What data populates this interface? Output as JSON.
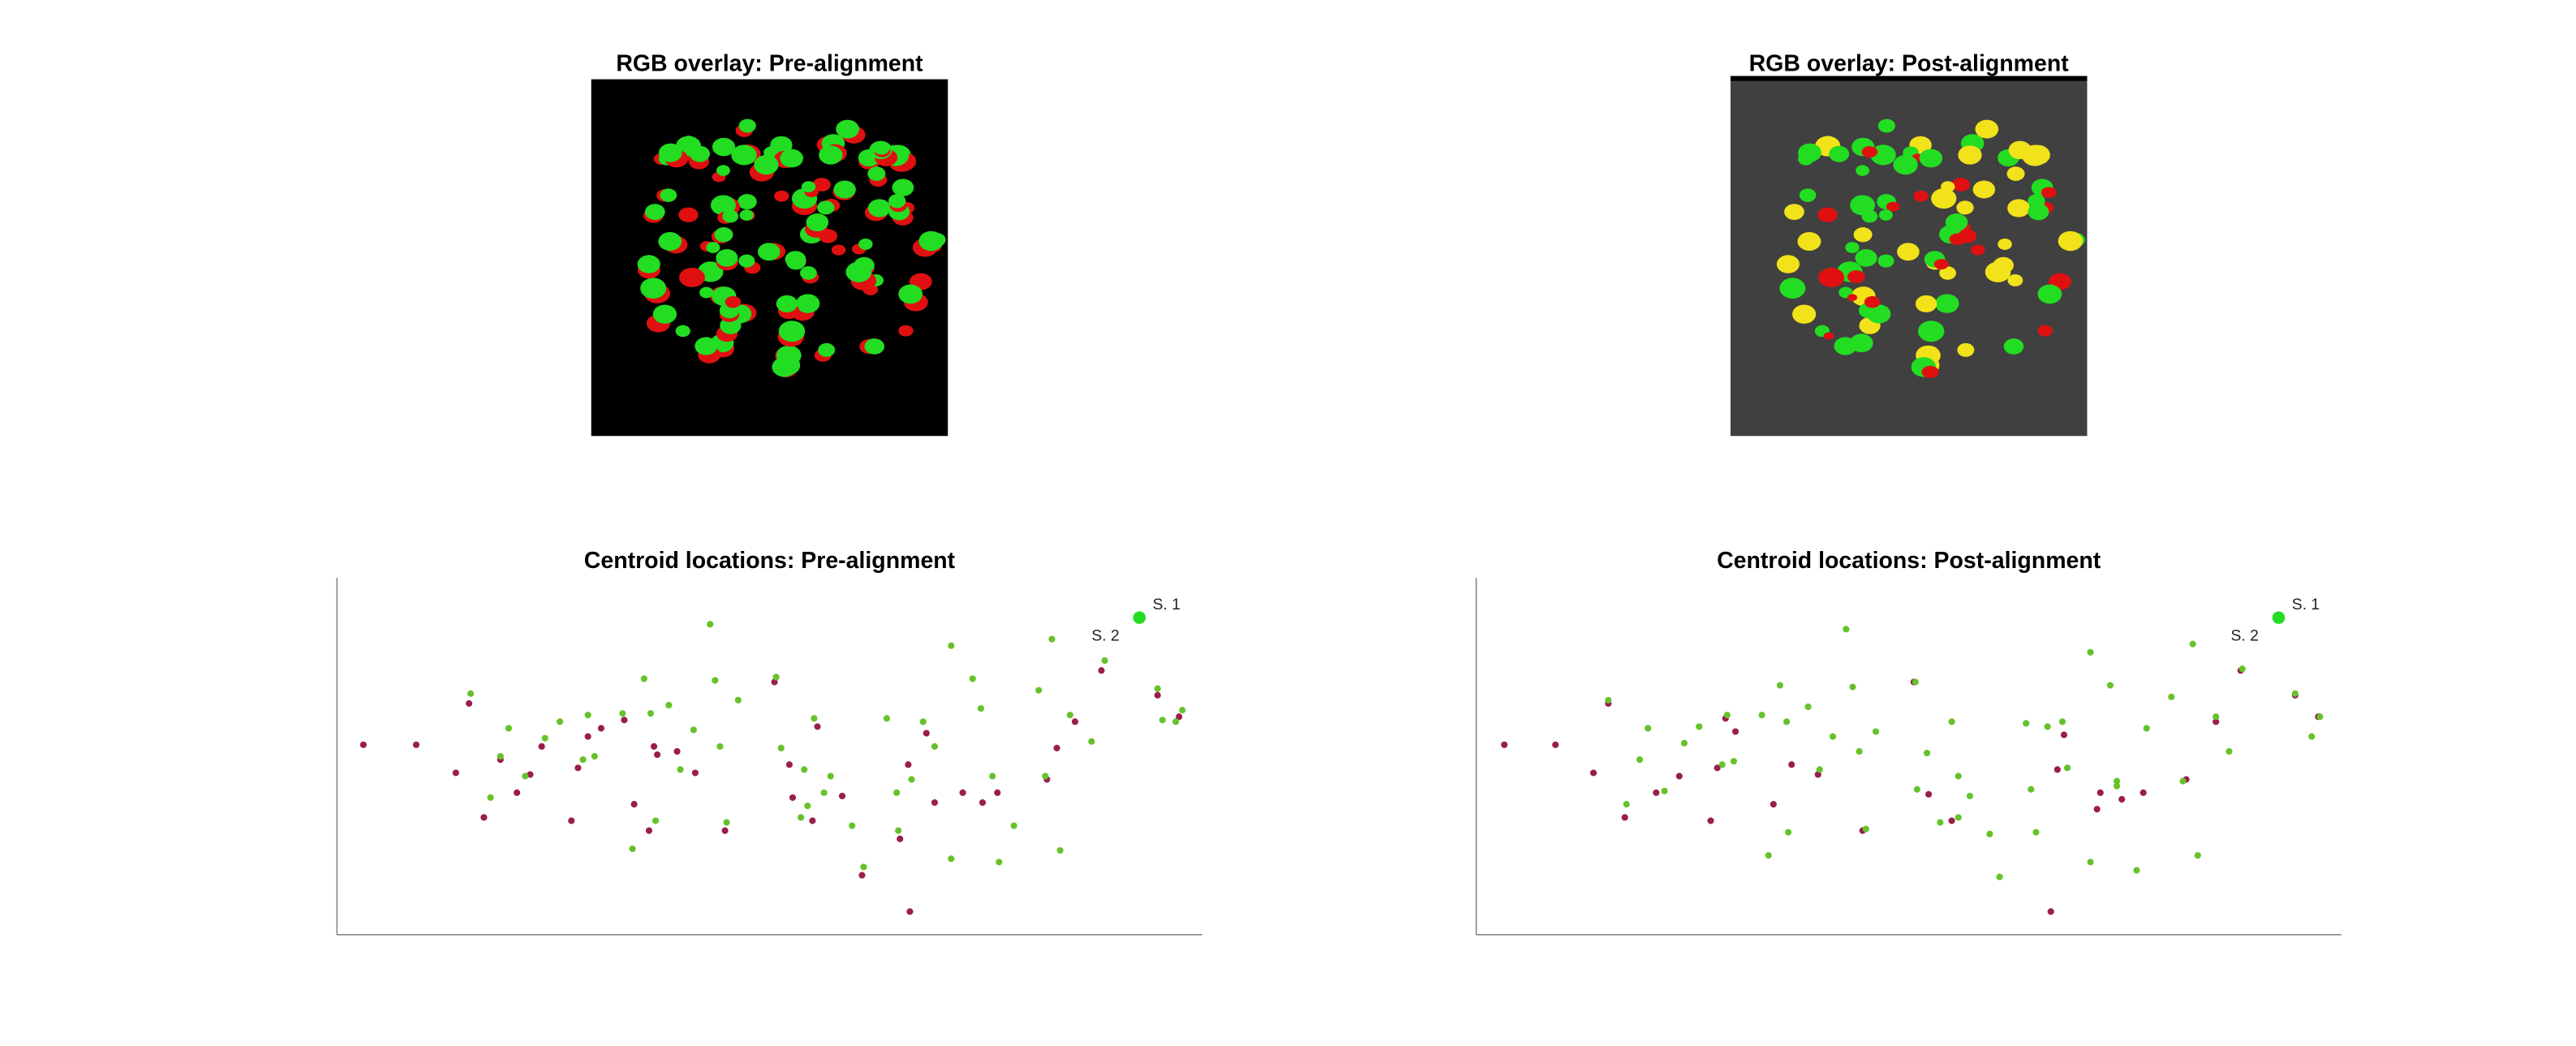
{
  "images": [
    {
      "title": "RGB overlay: Pre-alignment",
      "background": "#000000",
      "mode": "pre"
    },
    {
      "title": "RGB overlay: Post-alignment",
      "background": "#404040",
      "mode": "post"
    }
  ],
  "chart_data": [
    {
      "type": "scatter",
      "title": "Centroid locations: Pre-alignment",
      "xlim": [
        204,
        728
      ],
      "ylim": [
        566,
        350
      ],
      "series": [
        {
          "color": "#9a1e4c",
          "x": [
            220,
            252,
            276,
            284,
            293,
            303,
            313,
            321,
            328,
            346,
            350,
            356,
            364,
            378,
            384,
            393,
            398,
            410,
            421,
            439,
            469,
            478,
            480,
            492,
            495,
            510,
            522,
            545,
            551,
            561,
            566,
            583,
            595,
            604,
            634,
            640,
            651,
            667,
            701,
            714,
            396,
            550
          ],
          "values": [
            451,
            451,
            468,
            426,
            495,
            460,
            480,
            469,
            452,
            497,
            465,
            446,
            441,
            436,
            487,
            503,
            457,
            455,
            468,
            503,
            413,
            463,
            483,
            497,
            440,
            482,
            530,
            508,
            552,
            444,
            486,
            480,
            486,
            480,
            472,
            453,
            437,
            406,
            421,
            434,
            452,
            463
          ]
        },
        {
          "color": "#66c22a",
          "x": [
            285,
            308,
            303,
            330,
            339,
            356,
            360,
            377,
            390,
            394,
            405,
            412,
            420,
            433,
            436,
            447,
            470,
            473,
            487,
            493,
            499,
            503,
            516,
            537,
            543,
            552,
            559,
            566,
            576,
            589,
            594,
            601,
            614,
            629,
            637,
            648,
            661,
            669,
            701,
            712,
            704,
            716,
            430,
            383,
            523,
            576,
            605,
            642,
            297,
            318,
            353,
            397,
            440,
            485,
            489,
            544,
            633
          ],
          "values": [
            420,
            441,
            458,
            447,
            437,
            433,
            458,
            432,
            411,
            432,
            427,
            466,
            442,
            412,
            452,
            424,
            410,
            453,
            466,
            435,
            480,
            470,
            500,
            435,
            480,
            472,
            437,
            452,
            391,
            411,
            429,
            470,
            500,
            418,
            387,
            433,
            449,
            400,
            417,
            437,
            436,
            430,
            378,
            514,
            525,
            520,
            522,
            515,
            483,
            470,
            460,
            497,
            498,
            495,
            488,
            503,
            470
          ]
        }
      ],
      "highlight": {
        "x": 690,
        "y": 374,
        "color": "#22dd22"
      },
      "annotations": [
        {
          "text": "S. 1",
          "x": 698,
          "y": 369
        },
        {
          "text": "S. 2",
          "x": 661,
          "y": 388
        }
      ]
    },
    {
      "type": "scatter",
      "title": "Centroid locations: Post-alignment",
      "xlim": [
        894,
        1418
      ],
      "ylim": [
        566,
        350
      ],
      "series": [
        {
          "color": "#9a1e4c",
          "x": [
            911,
            942,
            965,
            974,
            984,
            1003,
            1017,
            1036,
            1040,
            1051,
            1074,
            1085,
            1101,
            1128,
            1159,
            1168,
            1182,
            1246,
            1242,
            1272,
            1285,
            1298,
            1324,
            1342,
            1357,
            1390,
            1404,
            1250,
            1270,
            1045
          ],
          "values": [
            451,
            451,
            468,
            426,
            495,
            480,
            470,
            497,
            465,
            443,
            487,
            463,
            469,
            503,
            413,
            481,
            497,
            466,
            552,
            480,
            484,
            480,
            472,
            437,
            406,
            421,
            434,
            445,
            490,
            435
          ]
        },
        {
          "color": "#66c22a",
          "x": [
            974,
            998,
            993,
            1020,
            1029,
            1046,
            1050,
            1067,
            1078,
            1082,
            1095,
            1102,
            1110,
            1122,
            1126,
            1136,
            1160,
            1167,
            1182,
            1186,
            1193,
            1205,
            1227,
            1230,
            1249,
            1252,
            1266,
            1278,
            1282,
            1300,
            1315,
            1328,
            1342,
            1358,
            1350,
            1390,
            1400,
            1405,
            1118,
            1071,
            1211,
            1266,
            1294,
            1331,
            985,
            1008,
            1043,
            1083,
            1130,
            1175,
            1186,
            1233,
            1322,
            1240,
            1161,
            1282
          ],
          "values": [
            424,
            441,
            460,
            450,
            440,
            433,
            461,
            433,
            415,
            437,
            428,
            466,
            446,
            416,
            455,
            443,
            413,
            456,
            437,
            470,
            482,
            505,
            438,
            478,
            437,
            465,
            395,
            415,
            473,
            441,
            422,
            390,
            434,
            405,
            455,
            420,
            446,
            434,
            381,
            518,
            531,
            522,
            527,
            518,
            487,
            479,
            463,
            504,
            502,
            498,
            495,
            504,
            473,
            440,
            478,
            476
          ]
        }
      ],
      "highlight": {
        "x": 1380,
        "y": 374,
        "color": "#22dd22"
      },
      "annotations": [
        {
          "text": "S. 1",
          "x": 1388,
          "y": 369
        },
        {
          "text": "S. 2",
          "x": 1351,
          "y": 388
        }
      ]
    }
  ]
}
